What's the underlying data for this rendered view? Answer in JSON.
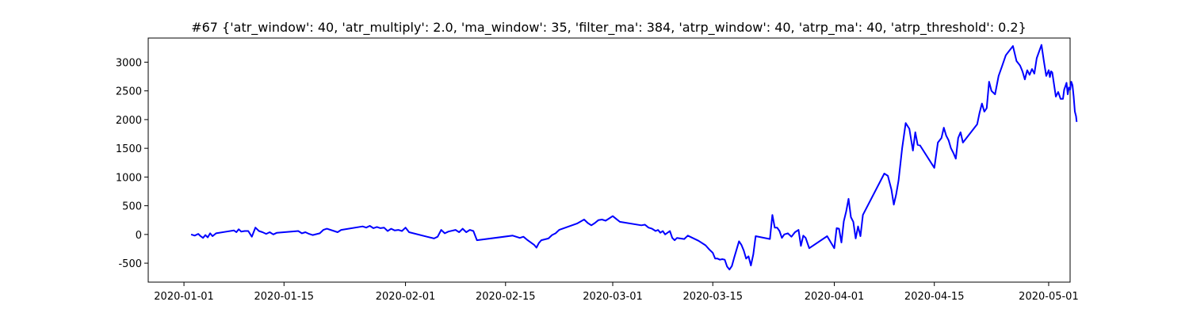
{
  "chart_data": {
    "type": "line",
    "title": "#67 {'atr_window': 40, 'atr_multiply': 2.0, 'ma_window': 35, 'filter_ma': 384, 'atrp_window': 40, 'atrp_ma': 40, 'atrp_threshold': 0.2}",
    "xlabel": "",
    "ylabel": "",
    "x_range": [
      "2019-12-27",
      "2020-05-04"
    ],
    "ylim": [
      -830,
      3420
    ],
    "x_ticks": [
      "2020-01-01",
      "2020-01-15",
      "2020-02-01",
      "2020-02-15",
      "2020-03-01",
      "2020-03-15",
      "2020-04-01",
      "2020-04-15",
      "2020-05-01"
    ],
    "y_ticks": [
      -500,
      0,
      500,
      1000,
      1500,
      2000,
      2500,
      3000
    ],
    "grid": false,
    "legend": "none",
    "series": [
      {
        "color": "#0000ff",
        "points": [
          [
            "2020-01-02",
            0
          ],
          [
            "2020-01-02T12:00",
            -20
          ],
          [
            "2020-01-03",
            10
          ],
          [
            "2020-01-03T08:00",
            -30
          ],
          [
            "2020-01-03T16:00",
            -60
          ],
          [
            "2020-01-04",
            -10
          ],
          [
            "2020-01-04T08:00",
            -50
          ],
          [
            "2020-01-04T16:00",
            20
          ],
          [
            "2020-01-05",
            -30
          ],
          [
            "2020-01-05T12:00",
            20
          ],
          [
            "2020-01-07",
            50
          ],
          [
            "2020-01-08",
            70
          ],
          [
            "2020-01-08T08:00",
            40
          ],
          [
            "2020-01-08T16:00",
            90
          ],
          [
            "2020-01-09",
            50
          ],
          [
            "2020-01-09T12:00",
            60
          ],
          [
            "2020-01-10",
            60
          ],
          [
            "2020-01-10T12:00",
            -40
          ],
          [
            "2020-01-11",
            120
          ],
          [
            "2020-01-11T12:00",
            60
          ],
          [
            "2020-01-12",
            40
          ],
          [
            "2020-01-12T12:00",
            10
          ],
          [
            "2020-01-13",
            40
          ],
          [
            "2020-01-13T12:00",
            0
          ],
          [
            "2020-01-14",
            30
          ],
          [
            "2020-01-17",
            60
          ],
          [
            "2020-01-17T12:00",
            20
          ],
          [
            "2020-01-18",
            40
          ],
          [
            "2020-01-18T12:00",
            10
          ],
          [
            "2020-01-19",
            -10
          ],
          [
            "2020-01-20",
            20
          ],
          [
            "2020-01-20T12:00",
            80
          ],
          [
            "2020-01-21",
            100
          ],
          [
            "2020-01-22",
            60
          ],
          [
            "2020-01-22T12:00",
            40
          ],
          [
            "2020-01-23",
            80
          ],
          [
            "2020-01-26",
            140
          ],
          [
            "2020-01-26T12:00",
            120
          ],
          [
            "2020-01-27",
            150
          ],
          [
            "2020-01-27T12:00",
            110
          ],
          [
            "2020-01-28",
            130
          ],
          [
            "2020-01-28T12:00",
            110
          ],
          [
            "2020-01-29",
            120
          ],
          [
            "2020-01-29T12:00",
            60
          ],
          [
            "2020-01-30",
            100
          ],
          [
            "2020-01-30T12:00",
            70
          ],
          [
            "2020-01-31",
            80
          ],
          [
            "2020-01-31T12:00",
            60
          ],
          [
            "2020-02-01",
            120
          ],
          [
            "2020-02-01T12:00",
            40
          ],
          [
            "2020-02-04",
            -40
          ],
          [
            "2020-02-05",
            -70
          ],
          [
            "2020-02-05T12:00",
            -40
          ],
          [
            "2020-02-06",
            80
          ],
          [
            "2020-02-06T12:00",
            20
          ],
          [
            "2020-02-07",
            50
          ],
          [
            "2020-02-08",
            80
          ],
          [
            "2020-02-08T12:00",
            40
          ],
          [
            "2020-02-09",
            100
          ],
          [
            "2020-02-09T12:00",
            40
          ],
          [
            "2020-02-10",
            80
          ],
          [
            "2020-02-10T12:00",
            60
          ],
          [
            "2020-02-11",
            -100
          ],
          [
            "2020-02-16",
            -20
          ],
          [
            "2020-02-17",
            -60
          ],
          [
            "2020-02-17T12:00",
            -40
          ],
          [
            "2020-02-18",
            -90
          ],
          [
            "2020-02-19",
            -180
          ],
          [
            "2020-02-19T08:00",
            -230
          ],
          [
            "2020-02-19T16:00",
            -150
          ],
          [
            "2020-02-20",
            -100
          ],
          [
            "2020-02-21",
            -70
          ],
          [
            "2020-02-21T12:00",
            -10
          ],
          [
            "2020-02-22",
            20
          ],
          [
            "2020-02-22T12:00",
            80
          ],
          [
            "2020-02-25",
            190
          ],
          [
            "2020-02-26",
            260
          ],
          [
            "2020-02-26T12:00",
            200
          ],
          [
            "2020-02-27",
            160
          ],
          [
            "2020-02-27T12:00",
            200
          ],
          [
            "2020-02-28",
            250
          ],
          [
            "2020-02-28T12:00",
            260
          ],
          [
            "2020-02-29",
            240
          ],
          [
            "2020-02-29T12:00",
            280
          ],
          [
            "2020-03-01",
            320
          ],
          [
            "2020-03-01T12:00",
            270
          ],
          [
            "2020-03-02",
            220
          ],
          [
            "2020-03-05",
            160
          ],
          [
            "2020-03-05T12:00",
            170
          ],
          [
            "2020-03-06",
            120
          ],
          [
            "2020-03-06T12:00",
            100
          ],
          [
            "2020-03-07",
            60
          ],
          [
            "2020-03-07T08:00",
            80
          ],
          [
            "2020-03-07T16:00",
            30
          ],
          [
            "2020-03-08",
            60
          ],
          [
            "2020-03-08T08:00",
            0
          ],
          [
            "2020-03-08T16:00",
            30
          ],
          [
            "2020-03-09",
            60
          ],
          [
            "2020-03-09T08:00",
            -60
          ],
          [
            "2020-03-09T16:00",
            -100
          ],
          [
            "2020-03-10",
            -60
          ],
          [
            "2020-03-11",
            -80
          ],
          [
            "2020-03-11T12:00",
            -20
          ],
          [
            "2020-03-13",
            -110
          ],
          [
            "2020-03-14",
            -190
          ],
          [
            "2020-03-14T12:00",
            -260
          ],
          [
            "2020-03-15",
            -320
          ],
          [
            "2020-03-15T08:00",
            -420
          ],
          [
            "2020-03-15T16:00",
            -420
          ],
          [
            "2020-03-16",
            -440
          ],
          [
            "2020-03-16T08:00",
            -430
          ],
          [
            "2020-03-16T16:00",
            -440
          ],
          [
            "2020-03-17",
            -560
          ],
          [
            "2020-03-17T08:00",
            -610
          ],
          [
            "2020-03-17T16:00",
            -550
          ],
          [
            "2020-03-18",
            -400
          ],
          [
            "2020-03-18T08:00",
            -260
          ],
          [
            "2020-03-18T16:00",
            -120
          ],
          [
            "2020-03-19",
            -180
          ],
          [
            "2020-03-19T08:00",
            -280
          ],
          [
            "2020-03-19T16:00",
            -420
          ],
          [
            "2020-03-20",
            -380
          ],
          [
            "2020-03-20T08:00",
            -540
          ],
          [
            "2020-03-20T16:00",
            -350
          ],
          [
            "2020-03-21",
            -30
          ],
          [
            "2020-03-23",
            -80
          ],
          [
            "2020-03-23T08:00",
            340
          ],
          [
            "2020-03-23T16:00",
            120
          ],
          [
            "2020-03-24",
            120
          ],
          [
            "2020-03-24T08:00",
            60
          ],
          [
            "2020-03-24T16:00",
            -60
          ],
          [
            "2020-03-25",
            0
          ],
          [
            "2020-03-25T12:00",
            20
          ],
          [
            "2020-03-26",
            -40
          ],
          [
            "2020-03-26T12:00",
            40
          ],
          [
            "2020-03-27",
            80
          ],
          [
            "2020-03-27T08:00",
            -200
          ],
          [
            "2020-03-27T16:00",
            -20
          ],
          [
            "2020-03-28",
            -60
          ],
          [
            "2020-03-28T12:00",
            -240
          ],
          [
            "2020-03-31",
            -30
          ],
          [
            "2020-04-01",
            -240
          ],
          [
            "2020-04-01T08:00",
            110
          ],
          [
            "2020-04-01T16:00",
            100
          ],
          [
            "2020-04-02",
            -140
          ],
          [
            "2020-04-02T08:00",
            230
          ],
          [
            "2020-04-02T16:00",
            400
          ],
          [
            "2020-04-03",
            620
          ],
          [
            "2020-04-03T08:00",
            300
          ],
          [
            "2020-04-03T16:00",
            220
          ],
          [
            "2020-04-04",
            -70
          ],
          [
            "2020-04-04T08:00",
            140
          ],
          [
            "2020-04-04T16:00",
            -30
          ],
          [
            "2020-04-05",
            340
          ],
          [
            "2020-04-08",
            1060
          ],
          [
            "2020-04-08T12:00",
            1020
          ],
          [
            "2020-04-09",
            780
          ],
          [
            "2020-04-09T08:00",
            520
          ],
          [
            "2020-04-09T16:00",
            700
          ],
          [
            "2020-04-10",
            940
          ],
          [
            "2020-04-10T12:00",
            1500
          ],
          [
            "2020-04-11",
            1940
          ],
          [
            "2020-04-11T12:00",
            1840
          ],
          [
            "2020-04-12",
            1460
          ],
          [
            "2020-04-12T08:00",
            1780
          ],
          [
            "2020-04-12T16:00",
            1560
          ],
          [
            "2020-04-13",
            1550
          ],
          [
            "2020-04-15",
            1160
          ],
          [
            "2020-04-15T12:00",
            1600
          ],
          [
            "2020-04-16",
            1680
          ],
          [
            "2020-04-16T08:00",
            1860
          ],
          [
            "2020-04-16T16:00",
            1720
          ],
          [
            "2020-04-17",
            1640
          ],
          [
            "2020-04-17T08:00",
            1500
          ],
          [
            "2020-04-17T16:00",
            1420
          ],
          [
            "2020-04-18",
            1320
          ],
          [
            "2020-04-18T08:00",
            1680
          ],
          [
            "2020-04-18T16:00",
            1780
          ],
          [
            "2020-04-19",
            1600
          ],
          [
            "2020-04-21",
            1920
          ],
          [
            "2020-04-21T08:00",
            2120
          ],
          [
            "2020-04-21T16:00",
            2280
          ],
          [
            "2020-04-22",
            2140
          ],
          [
            "2020-04-22T08:00",
            2200
          ],
          [
            "2020-04-22T16:00",
            2660
          ],
          [
            "2020-04-23",
            2500
          ],
          [
            "2020-04-23T12:00",
            2440
          ],
          [
            "2020-04-24",
            2760
          ],
          [
            "2020-04-24T12:00",
            2940
          ],
          [
            "2020-04-25",
            3120
          ],
          [
            "2020-04-26",
            3280
          ],
          [
            "2020-04-26T12:00",
            3020
          ],
          [
            "2020-04-27",
            2940
          ],
          [
            "2020-04-27T08:00",
            2840
          ],
          [
            "2020-04-27T16:00",
            2700
          ],
          [
            "2020-04-28",
            2860
          ],
          [
            "2020-04-28T08:00",
            2780
          ],
          [
            "2020-04-28T16:00",
            2880
          ],
          [
            "2020-04-29",
            2800
          ],
          [
            "2020-04-29T08:00",
            3070
          ],
          [
            "2020-04-30",
            3300
          ],
          [
            "2020-04-30T08:00",
            3020
          ],
          [
            "2020-04-30T16:00",
            2760
          ],
          [
            "2020-05-01",
            2860
          ],
          [
            "2020-05-01T04:00",
            2740
          ],
          [
            "2020-05-01T08:00",
            2840
          ],
          [
            "2020-05-01T12:00",
            2820
          ],
          [
            "2020-05-01T16:00",
            2680
          ],
          [
            "2020-05-02",
            2400
          ],
          [
            "2020-05-02T08:00",
            2480
          ],
          [
            "2020-05-02T16:00",
            2360
          ],
          [
            "2020-05-03",
            2360
          ],
          [
            "2020-05-03T04:00",
            2520
          ],
          [
            "2020-05-03T08:00",
            2580
          ],
          [
            "2020-05-03T12:00",
            2640
          ],
          [
            "2020-05-03T16:00",
            2440
          ],
          [
            "2020-05-03T20:00",
            2560
          ],
          [
            "2020-05-04",
            2520
          ],
          [
            "2020-05-04T04:00",
            2660
          ],
          [
            "2020-05-04T08:00",
            2600
          ],
          [
            "2020-05-04T12:00",
            2400
          ],
          [
            "2020-05-04T16:00",
            2140
          ],
          [
            "2020-05-04T20:00",
            2060
          ],
          [
            "2020-05-04T22:00",
            1960
          ]
        ]
      }
    ]
  }
}
